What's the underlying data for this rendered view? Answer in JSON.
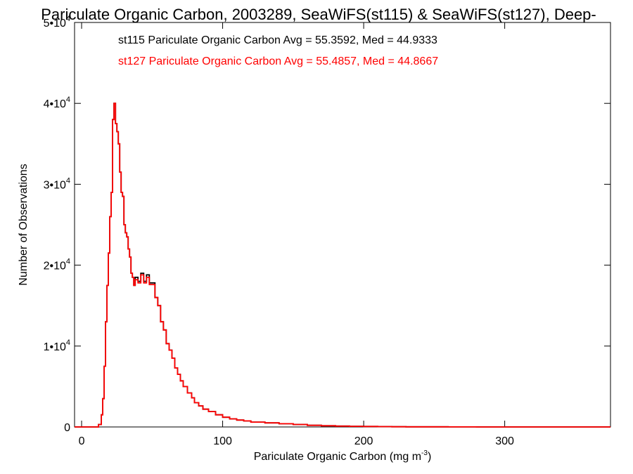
{
  "chart_data": {
    "type": "line",
    "title": "Pariculate Organic Carbon, 2003289, SeaWiFS(st115) & SeaWiFS(st127), Deep-",
    "xlabel_main": "Pariculate Organic Carbon (mg m",
    "xlabel_sup": "-3",
    "xlabel_close": ")",
    "ylabel": "Number of Observations",
    "xlim": [
      -5,
      375
    ],
    "ylim": [
      0,
      50000
    ],
    "x_ticks": [
      0,
      100,
      200,
      300
    ],
    "x_tick_labels": [
      "0",
      "100",
      "200",
      "300"
    ],
    "y_ticks": [
      0,
      10000,
      20000,
      30000,
      40000,
      50000
    ],
    "y_tick_labels": [
      {
        "base": "0",
        "exp": ""
      },
      {
        "base": "1•10",
        "exp": "4"
      },
      {
        "base": "2•10",
        "exp": "4"
      },
      {
        "base": "3•10",
        "exp": "4"
      },
      {
        "base": "4•10",
        "exp": "4"
      },
      {
        "base": "5•10",
        "exp": "4"
      }
    ],
    "annotations": [
      {
        "text": "st115 Pariculate Organic Carbon Avg = 55.3592, Med = 44.9333",
        "color": "#000000"
      },
      {
        "text": "st127 Pariculate Organic Carbon Avg = 55.4857, Med = 44.8667",
        "color": "#ff0000"
      }
    ],
    "x": [
      -5,
      10,
      12,
      14,
      15,
      16,
      17,
      18,
      19,
      20,
      21,
      22,
      23,
      24,
      25,
      26,
      27,
      28,
      29,
      30,
      31,
      32,
      33,
      34,
      35,
      36,
      37,
      38,
      40,
      42,
      44,
      46,
      48,
      50,
      52,
      54,
      56,
      58,
      60,
      62,
      64,
      66,
      68,
      70,
      72,
      75,
      78,
      80,
      83,
      86,
      90,
      95,
      100,
      105,
      110,
      115,
      120,
      130,
      140,
      150,
      160,
      170,
      180,
      190,
      200,
      210,
      220,
      230,
      240,
      260,
      280,
      300,
      330,
      375
    ],
    "series": [
      {
        "name": "st115",
        "color": "#000000",
        "values": [
          0,
          0,
          300,
          1500,
          3500,
          7500,
          13000,
          17500,
          21500,
          26000,
          29000,
          38000,
          40000,
          37500,
          36500,
          35000,
          31500,
          29000,
          28500,
          25000,
          24000,
          23500,
          22000,
          21000,
          19000,
          18500,
          17500,
          18500,
          18000,
          19000,
          18000,
          18800,
          17800,
          17800,
          16000,
          15000,
          13000,
          12000,
          10300,
          9500,
          8500,
          7300,
          6500,
          5700,
          5000,
          4200,
          3600,
          3000,
          2600,
          2200,
          1900,
          1500,
          1200,
          1000,
          850,
          750,
          600,
          500,
          400,
          300,
          200,
          150,
          100,
          80,
          60,
          40,
          30,
          20,
          15,
          8,
          4,
          2,
          1,
          0
        ]
      },
      {
        "name": "st127",
        "color": "#ff0000",
        "values": [
          0,
          0,
          300,
          1500,
          3500,
          7500,
          13000,
          17500,
          21500,
          26000,
          29000,
          38000,
          40000,
          37500,
          36500,
          35000,
          31500,
          29000,
          28500,
          25000,
          24000,
          23500,
          22000,
          21000,
          19000,
          18500,
          17500,
          18200,
          17800,
          18800,
          17800,
          18500,
          17600,
          17600,
          16000,
          15000,
          13000,
          12000,
          10300,
          9500,
          8500,
          7300,
          6500,
          5700,
          5000,
          4200,
          3600,
          3000,
          2600,
          2200,
          1900,
          1500,
          1200,
          1000,
          850,
          750,
          600,
          500,
          400,
          300,
          200,
          150,
          100,
          80,
          60,
          40,
          30,
          20,
          15,
          8,
          4,
          2,
          1,
          0
        ]
      }
    ],
    "grid": false,
    "legend": "none"
  }
}
